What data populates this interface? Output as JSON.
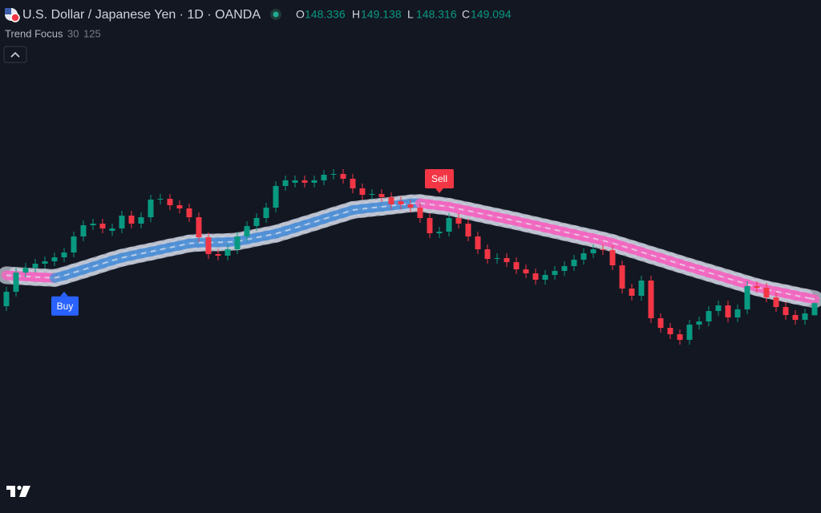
{
  "header": {
    "title": "U.S. Dollar / Japanese Yen · 1D · OANDA",
    "ohlc_labels": [
      "O",
      "H",
      "L",
      "C"
    ]
  },
  "indicator": {
    "name": "Trend Focus",
    "params": [
      30,
      125
    ]
  },
  "chart_data": {
    "type": "candlestick",
    "ylim": [
      136,
      168
    ],
    "background": "#131722",
    "up_color": "#089981",
    "down_color": "#f23645",
    "open": [
      148.9,
      149.8,
      151.0,
      151.3,
      151.55,
      151.7,
      151.95,
      152.25,
      153.25,
      153.95,
      154.05,
      153.6,
      153.75,
      154.55,
      154.05,
      154.45,
      155.55,
      155.6,
      155.2,
      155.0,
      154.45,
      153.2,
      152.15,
      152.05,
      152.45,
      153.25,
      153.9,
      154.4,
      155.05,
      156.4,
      156.6,
      156.75,
      156.6,
      156.75,
      157.1,
      157.15,
      156.85,
      156.25,
      155.85,
      155.9,
      155.7,
      155.45,
      155.25,
      155.05,
      154.4,
      153.45,
      153.55,
      154.4,
      154.05,
      153.25,
      152.45,
      151.85,
      151.9,
      151.65,
      151.2,
      150.95,
      150.55,
      150.85,
      151.1,
      151.4,
      151.8,
      152.2,
      152.45,
      152.4,
      151.45,
      150.0,
      149.55,
      150.5,
      148.15,
      147.55,
      147.15,
      146.8,
      147.75,
      147.95,
      148.6,
      148.95,
      148.2,
      148.7,
      150.15,
      150.05,
      149.45,
      148.85,
      148.35,
      148.05,
      148.336
    ],
    "high": [
      150.1,
      151.3,
      151.6,
      151.85,
      152.0,
      152.25,
      152.55,
      153.55,
      154.25,
      154.35,
      154.35,
      154.05,
      154.85,
      154.85,
      154.75,
      155.85,
      155.9,
      155.9,
      155.5,
      155.3,
      154.75,
      153.5,
      152.45,
      152.75,
      153.55,
      154.2,
      154.7,
      155.35,
      156.7,
      157.05,
      157.05,
      157.05,
      157.05,
      157.4,
      157.45,
      157.45,
      157.15,
      156.55,
      156.2,
      156.2,
      156.0,
      155.75,
      155.55,
      155.35,
      154.7,
      153.85,
      154.7,
      154.7,
      154.35,
      153.55,
      152.75,
      152.2,
      152.2,
      151.95,
      151.5,
      151.25,
      151.15,
      151.4,
      151.7,
      152.1,
      152.5,
      152.75,
      152.75,
      152.7,
      151.75,
      150.3,
      150.8,
      150.8,
      148.45,
      147.85,
      147.45,
      148.05,
      148.25,
      148.9,
      149.25,
      149.25,
      149.0,
      150.45,
      150.45,
      150.35,
      149.75,
      149.15,
      148.65,
      148.75,
      149.138
    ],
    "low": [
      148.6,
      149.5,
      150.7,
      151.0,
      151.25,
      151.4,
      151.65,
      151.95,
      152.95,
      153.65,
      153.45,
      153.3,
      153.45,
      153.75,
      153.75,
      154.15,
      155.25,
      154.9,
      154.7,
      154.15,
      152.9,
      151.85,
      151.75,
      151.75,
      152.15,
      152.95,
      153.6,
      154.1,
      154.75,
      156.1,
      156.3,
      156.3,
      156.3,
      156.45,
      156.8,
      156.55,
      155.95,
      155.55,
      155.55,
      155.4,
      154.95,
      154.95,
      154.75,
      154.1,
      153.15,
      153.15,
      153.25,
      153.75,
      152.95,
      152.15,
      151.55,
      151.55,
      151.35,
      150.9,
      150.65,
      150.25,
      150.25,
      150.55,
      150.8,
      151.1,
      151.5,
      151.9,
      152.1,
      151.15,
      149.7,
      149.25,
      149.25,
      147.85,
      147.25,
      146.85,
      146.5,
      146.5,
      147.45,
      147.65,
      148.3,
      147.9,
      147.9,
      148.4,
      149.75,
      149.15,
      148.55,
      148.05,
      147.75,
      147.75,
      148.316
    ],
    "close": [
      149.8,
      151.0,
      151.3,
      151.55,
      151.7,
      151.95,
      152.25,
      153.25,
      153.95,
      154.05,
      153.75,
      153.75,
      154.55,
      154.05,
      154.45,
      155.55,
      155.6,
      155.2,
      155.0,
      154.45,
      153.2,
      152.15,
      152.05,
      152.45,
      153.25,
      153.9,
      154.4,
      155.05,
      156.4,
      156.75,
      156.75,
      156.6,
      156.75,
      157.1,
      157.15,
      156.85,
      156.25,
      155.85,
      155.9,
      155.7,
      155.25,
      155.25,
      155.05,
      154.4,
      153.45,
      153.55,
      154.4,
      154.05,
      153.25,
      152.45,
      151.85,
      151.9,
      151.65,
      151.2,
      150.95,
      150.55,
      150.85,
      151.1,
      151.4,
      151.8,
      152.2,
      152.45,
      152.4,
      151.45,
      150.0,
      149.55,
      150.5,
      148.15,
      147.55,
      147.15,
      146.8,
      147.75,
      147.95,
      148.6,
      148.95,
      148.2,
      148.7,
      150.15,
      150.05,
      149.45,
      148.85,
      148.35,
      148.05,
      148.45,
      149.094
    ],
    "ribbon": {
      "up_color": "#4f8fd6",
      "down_color": "#f266c0",
      "values": [
        150.83,
        150.79,
        150.76,
        150.72,
        150.69,
        150.66,
        150.81,
        151.0,
        151.18,
        151.37,
        151.56,
        151.75,
        151.92,
        152.05,
        152.18,
        152.3,
        152.43,
        152.56,
        152.68,
        152.81,
        152.86,
        152.87,
        152.88,
        152.9,
        152.94,
        153.06,
        153.18,
        153.3,
        153.42,
        153.6,
        153.78,
        153.97,
        154.15,
        154.34,
        154.53,
        154.71,
        154.9,
        154.97,
        155.04,
        155.1,
        155.17,
        155.24,
        155.31,
        155.33,
        155.25,
        155.18,
        155.1,
        154.97,
        154.85,
        154.72,
        154.59,
        154.46,
        154.34,
        154.21,
        154.07,
        153.94,
        153.8,
        153.67,
        153.53,
        153.4,
        153.26,
        153.13,
        152.99,
        152.84,
        152.65,
        152.47,
        152.28,
        152.09,
        151.91,
        151.72,
        151.53,
        151.35,
        151.17,
        150.99,
        150.81,
        150.63,
        150.45,
        150.27,
        150.09,
        149.94,
        149.82,
        149.7,
        149.57,
        149.45,
        149.33
      ]
    },
    "signals": {
      "buy": "Buy",
      "sell": "Sell",
      "buy_color": "#2962ff",
      "sell_color": "#f23645"
    }
  }
}
